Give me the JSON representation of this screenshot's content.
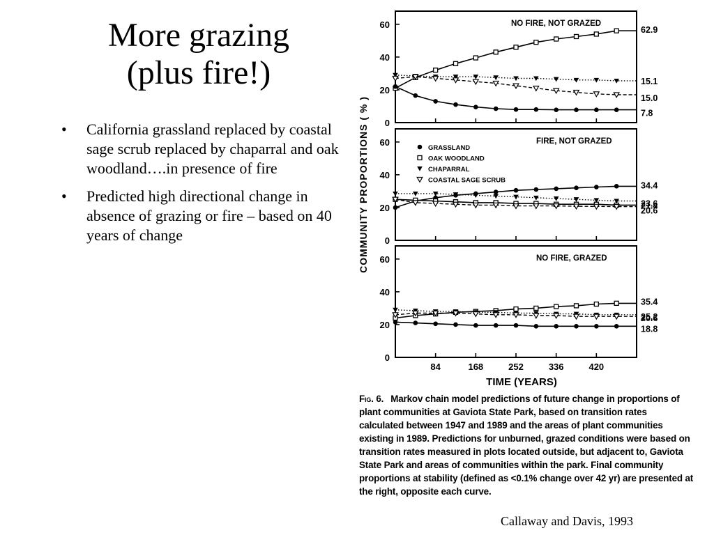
{
  "slide": {
    "title_line1": "More grazing",
    "title_line2": "(plus fire!)",
    "bullets": [
      "California grassland replaced by coastal sage scrub replaced by chaparral and oak woodland….in presence of fire",
      "Predicted high directional change in absence of grazing or fire – based on 40 years of change"
    ],
    "bullet_glyph": "•",
    "citation": "Callaway and Davis, 1993"
  },
  "figure": {
    "ylabel": "COMMUNITY  PROPORTIONS  ( % )",
    "xlabel": "TIME (YEARS)",
    "caption_label": "Fig. 6.",
    "caption_text": "Markov chain model predictions of future change in proportions of plant communities at Gaviota State Park, based on transition rates calculated between 1947 and 1989 and the areas of plant communities existing in 1989. Predictions for unburned, grazed conditions were based on transition rates measured in plots located outside, but adjacent to, Gaviota State Park and areas of communities within the park. Final community proportions at stability (defined as <0.1% change over 42 yr) are presented at the right, opposite each curve.",
    "legend": [
      {
        "name": "GRASSLAND",
        "marker": "filled-circle"
      },
      {
        "name": "OAK WOODLAND",
        "marker": "open-square"
      },
      {
        "name": "CHAPARRAL",
        "marker": "filled-triangle-down"
      },
      {
        "name": "COASTAL SAGE SCRUB",
        "marker": "open-triangle-down"
      }
    ]
  },
  "chart_data": [
    {
      "type": "line",
      "title": "NO FIRE, NOT GRAZED",
      "x": [
        0,
        42,
        84,
        126,
        168,
        210,
        252,
        294,
        336,
        378,
        420,
        462
      ],
      "xticks": [
        84,
        168,
        252,
        336,
        420
      ],
      "yticks": [
        0,
        20,
        40,
        60
      ],
      "ylim": [
        0,
        68
      ],
      "xlim": [
        0,
        504
      ],
      "series": [
        {
          "name": "OAK WOODLAND",
          "marker": "open-square",
          "line": "solid",
          "values": [
            21,
            27.5,
            32,
            36,
            39.5,
            43,
            46,
            49,
            51,
            52.5,
            54,
            56
          ]
        },
        {
          "name": "CHAPARRAL",
          "marker": "filled-triangle-down",
          "line": "dotted",
          "values": [
            29,
            28.5,
            28,
            28,
            28,
            27.5,
            27,
            27,
            26.5,
            26,
            26,
            25.5
          ]
        },
        {
          "name": "COASTAL SAGE SCRUB",
          "marker": "open-triangle-down",
          "line": "dashed",
          "values": [
            27,
            28,
            27,
            26,
            25,
            24,
            22.5,
            21,
            19.5,
            18.5,
            17.5,
            17
          ]
        },
        {
          "name": "GRASSLAND",
          "marker": "filled-circle",
          "line": "solid",
          "values": [
            22,
            16.5,
            13,
            11,
            9.5,
            8.5,
            8,
            8,
            7.8,
            7.8,
            7.8,
            7.8
          ]
        }
      ],
      "end_labels": [
        "62.9",
        "15.1",
        "15.0",
        "7.8"
      ]
    },
    {
      "type": "line",
      "title": "FIRE, NOT GRAZED",
      "x": [
        0,
        42,
        84,
        126,
        168,
        210,
        252,
        294,
        336,
        378,
        420,
        462
      ],
      "xticks": [
        84,
        168,
        252,
        336,
        420
      ],
      "yticks": [
        0,
        20,
        40,
        60
      ],
      "ylim": [
        0,
        68
      ],
      "xlim": [
        0,
        504
      ],
      "series": [
        {
          "name": "GRASSLAND",
          "marker": "filled-circle",
          "line": "solid",
          "values": [
            20,
            24,
            26,
            27.5,
            28.5,
            29.5,
            30.5,
            31,
            31.5,
            32,
            32.5,
            33
          ]
        },
        {
          "name": "CHAPARRAL",
          "marker": "filled-triangle-down",
          "line": "dotted",
          "values": [
            28.5,
            28.5,
            28.5,
            28,
            27.5,
            27,
            26.5,
            26,
            25.5,
            25,
            24.5,
            24
          ]
        },
        {
          "name": "OAK WOODLAND",
          "marker": "open-square",
          "line": "solid",
          "values": [
            25,
            24.5,
            24,
            23.5,
            23,
            23,
            22.5,
            22.5,
            22,
            22,
            22,
            21.5
          ]
        },
        {
          "name": "COASTAL SAGE SCRUB",
          "marker": "open-triangle-down",
          "line": "dashed",
          "values": [
            25,
            23,
            22.5,
            22,
            21.5,
            21.5,
            21,
            21,
            21,
            20.8,
            20.7,
            20.6
          ]
        }
      ],
      "end_labels": [
        "34.4",
        "23.6",
        "21.4",
        "20.6"
      ]
    },
    {
      "type": "line",
      "title": "NO FIRE, GRAZED",
      "x": [
        0,
        42,
        84,
        126,
        168,
        210,
        252,
        294,
        336,
        378,
        420,
        462
      ],
      "xticks": [
        84,
        168,
        252,
        336,
        420
      ],
      "yticks": [
        0,
        20,
        40,
        60
      ],
      "ylim": [
        0,
        68
      ],
      "xlim": [
        0,
        504
      ],
      "series": [
        {
          "name": "OAK WOODLAND",
          "marker": "open-square",
          "line": "solid",
          "values": [
            24,
            25.5,
            26.5,
            27.5,
            28,
            28.5,
            29.5,
            30,
            31,
            31.5,
            32.5,
            33
          ]
        },
        {
          "name": "CHAPARRAL",
          "marker": "filled-triangle-down",
          "line": "dotted",
          "values": [
            29,
            28.5,
            28,
            28,
            27.5,
            27.5,
            27,
            27,
            26.5,
            26.5,
            26,
            26
          ]
        },
        {
          "name": "COASTAL SAGE SCRUB",
          "marker": "open-triangle-down",
          "line": "dashed",
          "values": [
            26,
            27,
            27,
            27,
            26.5,
            26,
            26,
            25.5,
            25.5,
            25,
            25,
            25
          ]
        },
        {
          "name": "GRASSLAND",
          "marker": "filled-circle",
          "line": "solid",
          "values": [
            21.5,
            21,
            20.5,
            20,
            19.5,
            19.5,
            19.5,
            19,
            19,
            19,
            19,
            19
          ]
        }
      ],
      "end_labels": [
        "35.4",
        "25.2",
        "20.6",
        "18.8"
      ]
    }
  ]
}
